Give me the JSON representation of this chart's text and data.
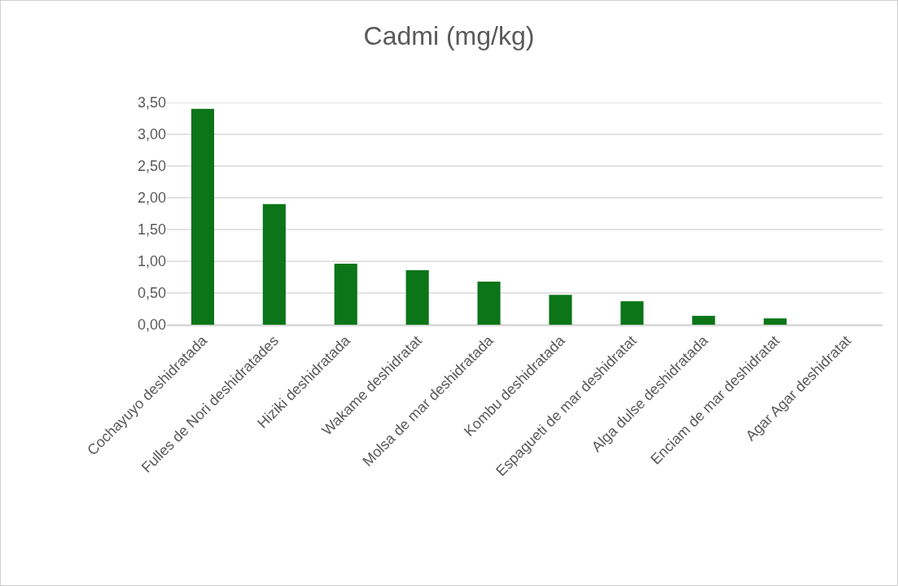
{
  "chart_data": {
    "type": "bar",
    "title": "Cadmi (mg/kg)",
    "categories": [
      "Cochayuyo deshidratada",
      "Fulles de Nori deshidratades",
      "Hiziki deshidratada",
      "Wakame deshidratat",
      "Molsa de mar deshidratada",
      "Kombu deshidratada",
      "Espagueti de mar deshidratat",
      "Alga dulse deshidratada",
      "Enciam de mar deshidratat",
      "Agar Agar deshidratat"
    ],
    "values": [
      3.4,
      1.9,
      0.96,
      0.86,
      0.68,
      0.47,
      0.37,
      0.14,
      0.1,
      0
    ],
    "color": "#0b7518",
    "ylim": [
      0,
      3.5
    ],
    "yticks": [
      {
        "value": 0,
        "label": "0,00"
      },
      {
        "value": 0.5,
        "label": "0,50"
      },
      {
        "value": 1,
        "label": "1,00"
      },
      {
        "value": 1.5,
        "label": "1,50"
      },
      {
        "value": 2,
        "label": "2,00"
      },
      {
        "value": 2.5,
        "label": "2,50"
      },
      {
        "value": 3,
        "label": "3,00"
      },
      {
        "value": 3.5,
        "label": "3,50"
      }
    ],
    "grid": "y"
  }
}
